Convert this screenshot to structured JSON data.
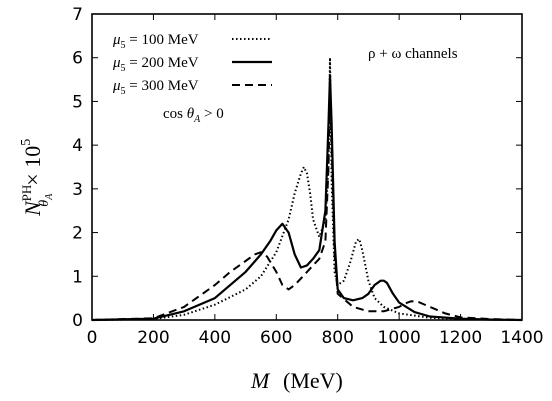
{
  "chart_data": {
    "type": "line",
    "xlabel_symbol": "M",
    "xlabel_unit": "(MeV)",
    "ylabel_main": "N",
    "ylabel_sup": "PH",
    "ylabel_sub": "θ",
    "ylabel_subsub": "A",
    "ylabel_factor": "× 10",
    "ylabel_exp": "5",
    "xlim": [
      0,
      1400
    ],
    "ylim": [
      0,
      7
    ],
    "x_ticks": [
      0,
      200,
      400,
      600,
      800,
      1000,
      1200,
      1400
    ],
    "y_ticks": [
      0,
      1,
      2,
      3,
      4,
      5,
      6,
      7
    ],
    "x_tick_labels": [
      "0",
      "200",
      "400",
      "600",
      "800",
      "1000",
      "1200",
      "1400"
    ],
    "y_tick_labels": [
      "0",
      "1",
      "2",
      "3",
      "4",
      "5",
      "6",
      "7"
    ],
    "annotation": "ρ + ω channels",
    "cut_label": "cos θ_A > 0",
    "grid": false,
    "legend_position": "top-left",
    "series": [
      {
        "name": "μ5 = 100 MeV",
        "style": "dotted",
        "x": [
          0,
          200,
          300,
          400,
          500,
          550,
          600,
          640,
          660,
          680,
          690,
          700,
          710,
          720,
          740,
          760,
          770,
          775,
          780,
          790,
          800,
          820,
          840,
          860,
          870,
          880,
          900,
          920,
          950,
          1000,
          1100,
          1200,
          1300,
          1400
        ],
        "y": [
          0,
          0.02,
          0.12,
          0.35,
          0.7,
          1.0,
          1.55,
          2.3,
          2.9,
          3.35,
          3.5,
          3.35,
          2.9,
          2.3,
          1.9,
          2.3,
          3.5,
          6.0,
          3.2,
          1.1,
          0.8,
          0.9,
          1.3,
          1.8,
          1.85,
          1.6,
          0.9,
          0.5,
          0.3,
          0.15,
          0.05,
          0.02,
          0.01,
          0
        ]
      },
      {
        "name": "μ5 = 200 MeV",
        "style": "solid",
        "x": [
          0,
          200,
          300,
          400,
          500,
          550,
          580,
          600,
          620,
          640,
          660,
          680,
          700,
          720,
          740,
          760,
          770,
          775,
          780,
          790,
          800,
          820,
          850,
          880,
          900,
          920,
          940,
          950,
          960,
          980,
          1000,
          1050,
          1100,
          1200,
          1300,
          1400
        ],
        "y": [
          0,
          0.03,
          0.2,
          0.5,
          1.1,
          1.5,
          1.8,
          2.05,
          2.2,
          2.0,
          1.5,
          1.2,
          1.25,
          1.4,
          1.6,
          2.5,
          4.5,
          5.6,
          4.5,
          1.8,
          0.7,
          0.5,
          0.45,
          0.5,
          0.6,
          0.8,
          0.9,
          0.9,
          0.85,
          0.6,
          0.4,
          0.18,
          0.08,
          0.03,
          0.01,
          0
        ]
      },
      {
        "name": "μ5 = 300 MeV",
        "style": "dashed",
        "x": [
          0,
          200,
          300,
          350,
          400,
          450,
          500,
          530,
          550,
          570,
          600,
          620,
          640,
          660,
          680,
          700,
          720,
          740,
          760,
          770,
          775,
          780,
          790,
          800,
          850,
          900,
          950,
          1000,
          1020,
          1040,
          1060,
          1100,
          1150,
          1200,
          1300,
          1400
        ],
        "y": [
          0,
          0.04,
          0.3,
          0.55,
          0.8,
          1.1,
          1.35,
          1.5,
          1.55,
          1.45,
          1.1,
          0.8,
          0.7,
          0.8,
          0.95,
          1.1,
          1.25,
          1.4,
          1.8,
          3.5,
          5.4,
          4.0,
          1.5,
          0.6,
          0.3,
          0.2,
          0.2,
          0.3,
          0.38,
          0.43,
          0.42,
          0.3,
          0.15,
          0.06,
          0.02,
          0
        ]
      }
    ]
  }
}
